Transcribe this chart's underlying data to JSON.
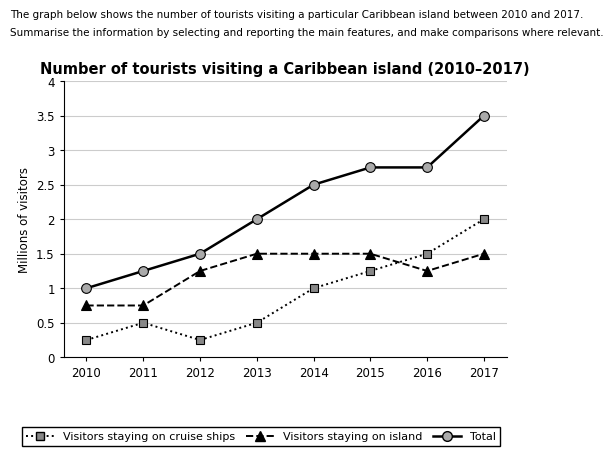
{
  "title": "Number of tourists visiting a Caribbean island (2010–2017)",
  "header_line1": "The graph below shows the number of tourists visiting a particular Caribbean island between 2010 and 2017.",
  "header_line2": "Summarise the information by selecting and reporting the main features, and make comparisons where relevant.",
  "ylabel": "Millions of visitors",
  "years": [
    2010,
    2011,
    2012,
    2013,
    2014,
    2015,
    2016,
    2017
  ],
  "cruise_ships": [
    0.25,
    0.5,
    0.25,
    0.5,
    1.0,
    1.25,
    1.5,
    2.0
  ],
  "island": [
    0.75,
    0.75,
    1.25,
    1.5,
    1.5,
    1.5,
    1.25,
    1.5
  ],
  "total": [
    1.0,
    1.25,
    1.5,
    2.0,
    2.5,
    2.75,
    2.75,
    3.5
  ],
  "ylim": [
    0,
    4
  ],
  "yticks": [
    0,
    0.5,
    1.0,
    1.5,
    2.0,
    2.5,
    3.0,
    3.5,
    4.0
  ],
  "ytick_labels": [
    "0",
    "0.5",
    "1",
    "1.5",
    "2",
    "2.5",
    "3",
    "3.5",
    "4"
  ],
  "background_color": "#ffffff",
  "grid_color": "#cccccc",
  "legend_cruise_label": "Visitors staying on cruise ships",
  "legend_island_label": "Visitors staying on island",
  "legend_total_label": "Total",
  "header1_fontsize": 7.5,
  "header2_fontsize": 7.5,
  "title_fontsize": 10.5,
  "axis_fontsize": 8.5,
  "ylabel_fontsize": 8.5,
  "legend_fontsize": 8.0
}
